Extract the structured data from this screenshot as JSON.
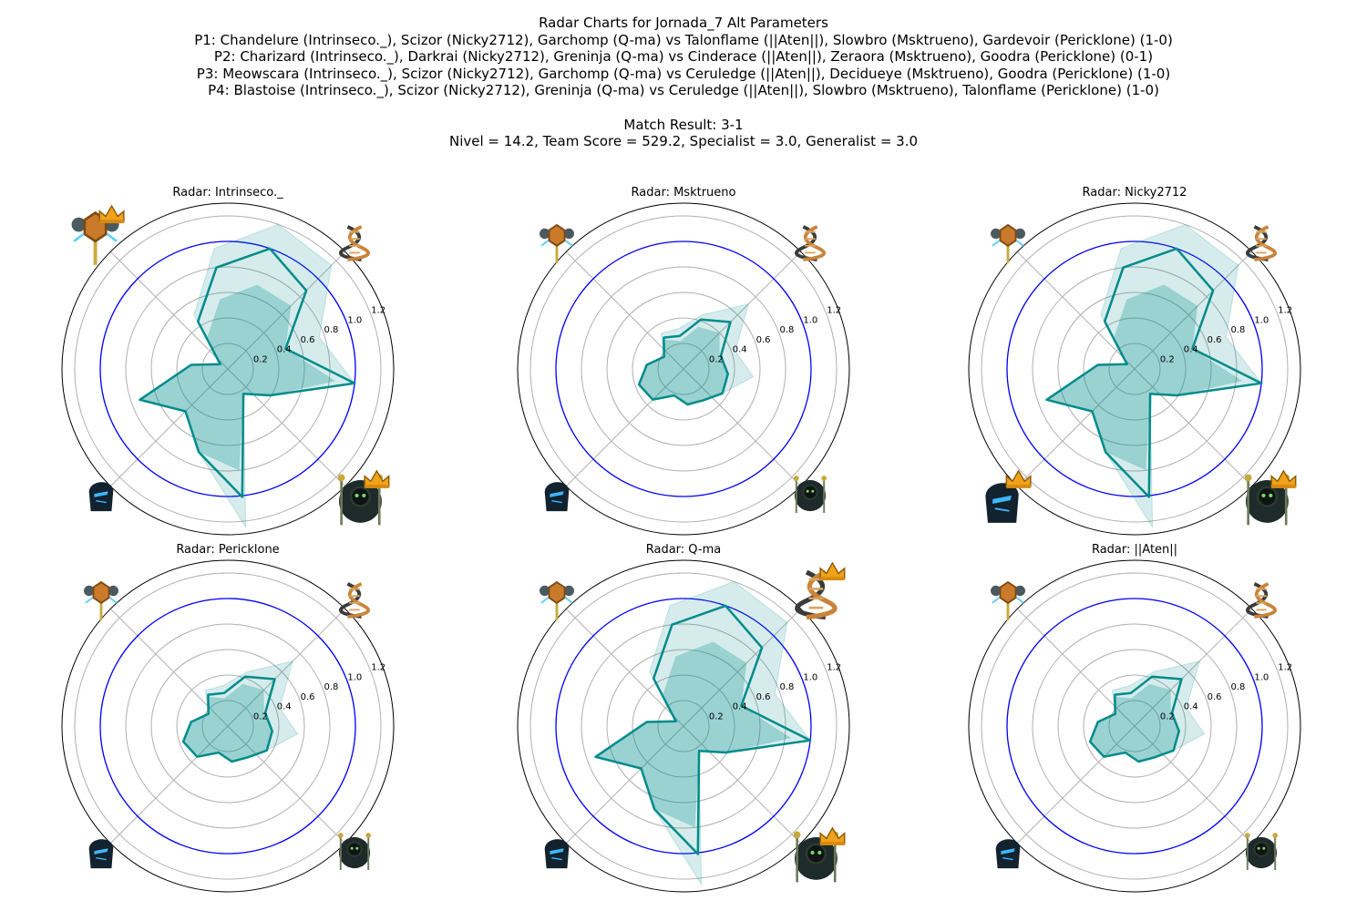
{
  "figure": {
    "title": "Radar Charts for Jornada_7 Alt Parameters",
    "matches": [
      "P1: Chandelure (Intrinseco._), Scizor (Nicky2712), Garchomp (Q-ma) vs Talonflame (||Aten||), Slowbro (Msktrueno), Gardevoir (Pericklone) (1-0)",
      "P2: Charizard (Intrinseco._), Darkrai (Nicky2712), Greninja (Q-ma) vs Cinderace (||Aten||), Zeraora (Msktrueno), Goodra (Pericklone) (0-1)",
      "P3: Meowscara (Intrinseco._), Scizor (Nicky2712), Garchomp (Q-ma) vs Ceruledge (||Aten||), Decidueye (Msktrueno), Goodra (Pericklone) (1-0)",
      "P4: Blastoise (Intrinseco._), Scizor (Nicky2712), Greninja (Q-ma) vs Ceruledge (||Aten||), Slowbro (Msktrueno), Talonflame (Pericklone) (1-0)"
    ],
    "result": "Match Result: 3-1",
    "stats": "Nivel = 14.2, Team Score = 529.2, Specialist = 3.0, Generalist = 3.0"
  },
  "colors": {
    "line": "#008b8b",
    "fill": "#008b8b",
    "reference_circle": "#0000ff",
    "grid": "#b0b0b0",
    "frame": "#000000"
  },
  "icons": {
    "axis_0": "dna-icon",
    "axis_1": "wizard-team-icon",
    "axis_2": "hooded-face-icon",
    "axis_3": "medallion-staff-icon",
    "crown": "crown-icon"
  },
  "chart_data": [
    {
      "type": "radar",
      "title": "Radar: Intrinseco._",
      "axes_deg": [
        45,
        315,
        225,
        135
      ],
      "rlim": [
        0,
        1.3
      ],
      "rticks": [
        0.2,
        0.4,
        0.6,
        0.8,
        1.0,
        1.2
      ],
      "tick_labels": [
        "0.2",
        "0.4",
        "0.6",
        "0.8",
        "1.0",
        "1.2"
      ],
      "reference": 1.0,
      "grid": true,
      "values": [
        0.87,
        0.48,
        1.0,
        0.39,
        0.23,
        1.01,
        0.69,
        0.47,
        0.73,
        0.29,
        0.07,
        0.44,
        0.8,
        1.0
      ],
      "band_low": [
        0.7,
        0.48,
        0.85,
        0.39,
        0.23,
        0.8,
        0.69,
        0.47,
        0.73,
        0.29,
        0.07,
        0.3,
        0.55,
        0.7
      ],
      "band_high": [
        1.15,
        0.76,
        1.0,
        0.39,
        0.23,
        1.25,
        0.69,
        0.47,
        0.73,
        0.29,
        0.07,
        0.5,
        0.95,
        1.2
      ],
      "crowns": [
        "wizard-team-icon",
        "medallion-staff-icon"
      ],
      "large_icons": [
        "wizard-team-icon",
        "medallion-staff-icon"
      ]
    },
    {
      "type": "radar",
      "title": "Radar: Msktrueno",
      "axes_deg": [
        45,
        315,
        225,
        135
      ],
      "rlim": [
        0,
        1.3
      ],
      "rticks": [
        0.2,
        0.4,
        0.6,
        0.8,
        1.0,
        1.2
      ],
      "tick_labels": [
        "0.2",
        "0.4",
        "0.6",
        "0.8",
        "1.0",
        "1.2"
      ],
      "reference": 1.0,
      "grid": true,
      "values": [
        0.52,
        0.31,
        0.35,
        0.36,
        0.29,
        0.28,
        0.22,
        0.34,
        0.37,
        0.29,
        0.18,
        0.29,
        0.26,
        0.41
      ],
      "band_low": [
        0.4,
        0.3,
        0.35,
        0.36,
        0.29,
        0.28,
        0.22,
        0.34,
        0.37,
        0.29,
        0.18,
        0.27,
        0.22,
        0.35
      ],
      "band_high": [
        0.72,
        0.43,
        0.55,
        0.36,
        0.29,
        0.28,
        0.22,
        0.34,
        0.37,
        0.29,
        0.18,
        0.33,
        0.32,
        0.45
      ],
      "crowns": [],
      "large_icons": []
    },
    {
      "type": "radar",
      "title": "Radar: Nicky2712",
      "axes_deg": [
        45,
        315,
        225,
        135
      ],
      "rlim": [
        0,
        1.3
      ],
      "rticks": [
        0.2,
        0.4,
        0.6,
        0.8,
        1.0,
        1.2
      ],
      "tick_labels": [
        "0.2",
        "0.4",
        "0.6",
        "0.8",
        "1.0",
        "1.2"
      ],
      "reference": 1.0,
      "grid": true,
      "values": [
        0.87,
        0.48,
        1.0,
        0.39,
        0.23,
        1.01,
        0.69,
        0.47,
        0.73,
        0.29,
        0.07,
        0.44,
        0.8,
        1.0
      ],
      "band_low": [
        0.7,
        0.48,
        0.85,
        0.39,
        0.23,
        0.8,
        0.69,
        0.47,
        0.73,
        0.29,
        0.07,
        0.3,
        0.55,
        0.7
      ],
      "band_high": [
        1.15,
        0.76,
        1.0,
        0.39,
        0.23,
        1.25,
        0.69,
        0.47,
        0.73,
        0.29,
        0.07,
        0.5,
        0.95,
        1.2
      ],
      "crowns": [
        "wizard-team-icon",
        "hooded-face-icon"
      ],
      "large_icons": [
        "wizard-team-icon",
        "hooded-face-icon"
      ]
    },
    {
      "type": "radar",
      "title": "Radar: Pericklone",
      "axes_deg": [
        45,
        315,
        225,
        135
      ],
      "rlim": [
        0,
        1.3
      ],
      "rticks": [
        0.2,
        0.4,
        0.6,
        0.8,
        1.0,
        1.2
      ],
      "tick_labels": [
        "0.2",
        "0.4",
        "0.6",
        "0.8",
        "1.0",
        "1.2"
      ],
      "reference": 1.0,
      "grid": true,
      "values": [
        0.52,
        0.31,
        0.35,
        0.36,
        0.29,
        0.28,
        0.22,
        0.34,
        0.37,
        0.29,
        0.18,
        0.29,
        0.26,
        0.41
      ],
      "band_low": [
        0.4,
        0.3,
        0.35,
        0.36,
        0.29,
        0.28,
        0.22,
        0.34,
        0.37,
        0.29,
        0.18,
        0.27,
        0.22,
        0.35
      ],
      "band_high": [
        0.72,
        0.43,
        0.55,
        0.36,
        0.29,
        0.28,
        0.22,
        0.34,
        0.37,
        0.29,
        0.18,
        0.33,
        0.32,
        0.45
      ],
      "crowns": [],
      "large_icons": []
    },
    {
      "type": "radar",
      "title": "Radar: Q-ma",
      "axes_deg": [
        45,
        315,
        225,
        135
      ],
      "rlim": [
        0,
        1.3
      ],
      "rticks": [
        0.2,
        0.4,
        0.6,
        0.8,
        1.0,
        1.2
      ],
      "tick_labels": [
        "0.2",
        "0.4",
        "0.6",
        "0.8",
        "1.0",
        "1.2"
      ],
      "reference": 1.0,
      "grid": true,
      "values": [
        0.87,
        0.48,
        1.0,
        0.39,
        0.23,
        1.01,
        0.69,
        0.47,
        0.73,
        0.29,
        0.07,
        0.44,
        0.8,
        1.0
      ],
      "band_low": [
        0.7,
        0.48,
        0.85,
        0.39,
        0.23,
        0.8,
        0.69,
        0.47,
        0.73,
        0.29,
        0.07,
        0.3,
        0.55,
        0.7
      ],
      "band_high": [
        1.15,
        0.76,
        1.0,
        0.39,
        0.23,
        1.25,
        0.69,
        0.47,
        0.73,
        0.29,
        0.07,
        0.5,
        0.95,
        1.2
      ],
      "crowns": [
        "dna-icon",
        "wizard-team-icon"
      ],
      "large_icons": [
        "dna-icon",
        "wizard-team-icon"
      ]
    },
    {
      "type": "radar",
      "title": "Radar: ||Aten||",
      "axes_deg": [
        45,
        315,
        225,
        135
      ],
      "rlim": [
        0,
        1.3
      ],
      "rticks": [
        0.2,
        0.4,
        0.6,
        0.8,
        1.0,
        1.2
      ],
      "tick_labels": [
        "0.2",
        "0.4",
        "0.6",
        "0.8",
        "1.0",
        "1.2"
      ],
      "reference": 1.0,
      "grid": true,
      "values": [
        0.52,
        0.31,
        0.35,
        0.36,
        0.29,
        0.28,
        0.22,
        0.34,
        0.37,
        0.29,
        0.18,
        0.29,
        0.26,
        0.41
      ],
      "band_low": [
        0.4,
        0.3,
        0.35,
        0.36,
        0.29,
        0.28,
        0.22,
        0.34,
        0.37,
        0.29,
        0.18,
        0.27,
        0.22,
        0.35
      ],
      "band_high": [
        0.72,
        0.43,
        0.55,
        0.36,
        0.29,
        0.28,
        0.22,
        0.34,
        0.37,
        0.29,
        0.18,
        0.33,
        0.32,
        0.45
      ],
      "crowns": [],
      "large_icons": []
    }
  ]
}
